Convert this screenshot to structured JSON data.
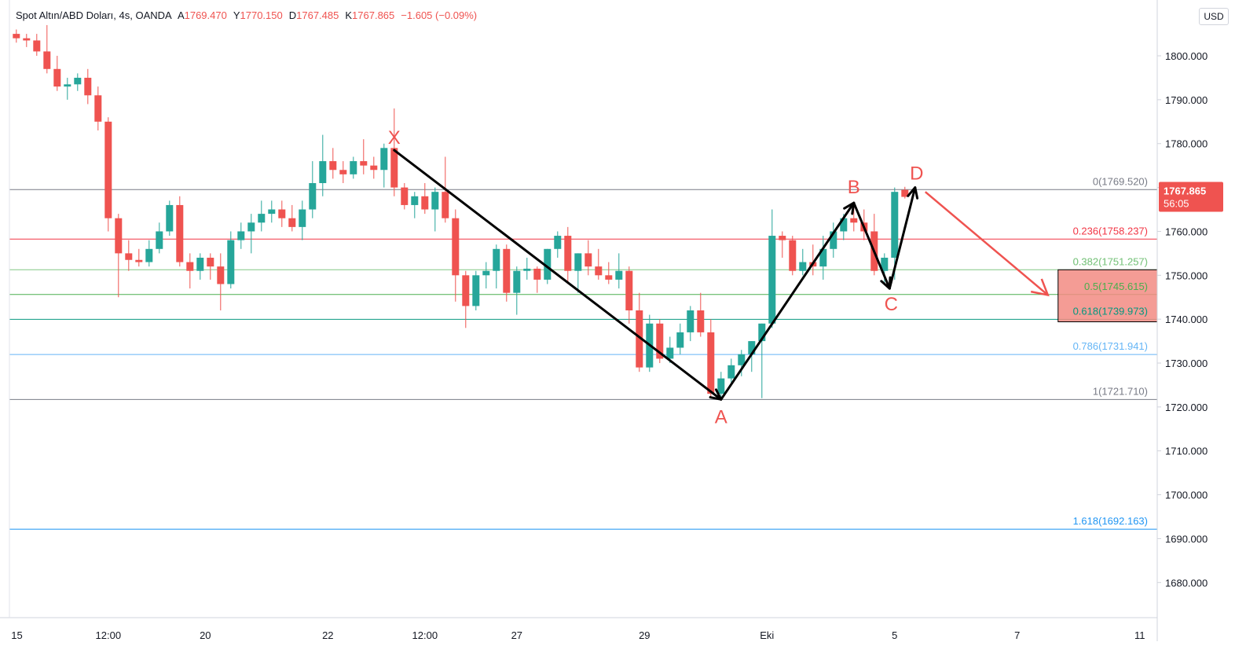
{
  "legend": {
    "symbol": "Spot Altın/ABD Doları, 4s, OANDA",
    "open_label": "A",
    "open": "1769.470",
    "high_label": "Y",
    "high": "1770.150",
    "low_label": "D",
    "low": "1767.485",
    "close_label": "K",
    "close": "1767.865",
    "change": "−1.605 (−0.09%)"
  },
  "currency_button": "USD",
  "price_tag": {
    "price": "1767.865",
    "countdown": "56:05",
    "color": "#ef5350"
  },
  "colors": {
    "up": "#26a69a",
    "down": "#ef5350",
    "pattern": "#000000",
    "projection": "#ef5350",
    "zone": "#f28b82"
  },
  "chart_data": {
    "type": "candlestick",
    "ylim": [
      1672,
      1812
    ],
    "y_ticks": [
      "1680.000",
      "1690.000",
      "1700.000",
      "1710.000",
      "1720.000",
      "1730.000",
      "1740.000",
      "1750.000",
      "1760.000",
      "1770.000",
      "1780.000",
      "1790.000",
      "1800.000"
    ],
    "y_tick_values": [
      1680,
      1690,
      1700,
      1710,
      1720,
      1730,
      1740,
      1750,
      1760,
      1770,
      1780,
      1790,
      1800
    ],
    "x_ticks": [
      {
        "label": "15",
        "i": -0.5
      },
      {
        "label": "12:00",
        "i": 9
      },
      {
        "label": "20",
        "i": 18.5
      },
      {
        "label": "22",
        "i": 30.5
      },
      {
        "label": "12:00",
        "i": 40
      },
      {
        "label": "27",
        "i": 49
      },
      {
        "label": "29",
        "i": 61.5
      },
      {
        "label": "Eki",
        "i": 73.5
      },
      {
        "label": "5",
        "i": 86
      },
      {
        "label": "7",
        "i": 98
      },
      {
        "label": "11",
        "i": 110
      }
    ],
    "candles": [
      [
        1805,
        1806,
        1803,
        1804
      ],
      [
        1804,
        1805,
        1802,
        1803.5
      ],
      [
        1803.5,
        1805,
        1800,
        1801
      ],
      [
        1801,
        1807,
        1796,
        1797
      ],
      [
        1797,
        1800,
        1792,
        1793
      ],
      [
        1793,
        1795,
        1790,
        1793.5
      ],
      [
        1793.5,
        1796,
        1792,
        1795
      ],
      [
        1795,
        1797,
        1789,
        1791
      ],
      [
        1791,
        1793,
        1783,
        1785
      ],
      [
        1785,
        1786,
        1760,
        1763
      ],
      [
        1763,
        1764,
        1745,
        1755
      ],
      [
        1755,
        1758,
        1751,
        1753.5
      ],
      [
        1753.5,
        1756,
        1752,
        1753
      ],
      [
        1753,
        1758,
        1752,
        1756
      ],
      [
        1756,
        1762,
        1755,
        1760
      ],
      [
        1760,
        1767,
        1759,
        1766
      ],
      [
        1766,
        1768,
        1752,
        1753
      ],
      [
        1753,
        1755,
        1747,
        1751
      ],
      [
        1751,
        1755,
        1749,
        1754
      ],
      [
        1754,
        1755,
        1749,
        1752
      ],
      [
        1752,
        1755,
        1742,
        1748
      ],
      [
        1748,
        1760,
        1747,
        1758
      ],
      [
        1758,
        1762,
        1756,
        1760
      ],
      [
        1760,
        1764,
        1755,
        1762
      ],
      [
        1762,
        1767,
        1760,
        1764
      ],
      [
        1764,
        1767,
        1762,
        1765
      ],
      [
        1765,
        1767,
        1761,
        1763
      ],
      [
        1763,
        1766,
        1760,
        1761
      ],
      [
        1761,
        1767,
        1758,
        1765
      ],
      [
        1765,
        1776,
        1763,
        1771
      ],
      [
        1771,
        1782,
        1768,
        1776
      ],
      [
        1776,
        1779,
        1772,
        1774
      ],
      [
        1774,
        1776,
        1771,
        1773
      ],
      [
        1773,
        1777,
        1772,
        1776
      ],
      [
        1776,
        1781,
        1773,
        1775
      ],
      [
        1775,
        1777,
        1772,
        1774
      ],
      [
        1774,
        1780,
        1770,
        1779
      ],
      [
        1779,
        1788,
        1768,
        1770
      ],
      [
        1770,
        1771,
        1765,
        1766
      ],
      [
        1766,
        1769,
        1763,
        1768
      ],
      [
        1768,
        1771,
        1764,
        1765
      ],
      [
        1765,
        1770,
        1760,
        1769
      ],
      [
        1769,
        1777,
        1762,
        1763
      ],
      [
        1763,
        1765,
        1744,
        1750
      ],
      [
        1750,
        1751,
        1738,
        1743
      ],
      [
        1743,
        1751,
        1742,
        1750
      ],
      [
        1750,
        1753,
        1747,
        1751
      ],
      [
        1751,
        1757,
        1747,
        1756
      ],
      [
        1756,
        1757,
        1744,
        1746
      ],
      [
        1746,
        1752,
        1741,
        1751
      ],
      [
        1751,
        1754,
        1749,
        1751.5
      ],
      [
        1751.5,
        1752,
        1746,
        1749
      ],
      [
        1749,
        1756,
        1748,
        1756
      ],
      [
        1756,
        1760,
        1754,
        1759
      ],
      [
        1759,
        1761,
        1748,
        1751
      ],
      [
        1751,
        1755,
        1746,
        1755
      ],
      [
        1755,
        1758,
        1750,
        1752
      ],
      [
        1752,
        1756,
        1749,
        1750
      ],
      [
        1750,
        1753,
        1748,
        1749
      ],
      [
        1749,
        1755,
        1747,
        1751
      ],
      [
        1751,
        1752,
        1739,
        1742
      ],
      [
        1742,
        1746,
        1728,
        1729
      ],
      [
        1729,
        1741,
        1728,
        1739
      ],
      [
        1739,
        1740,
        1730,
        1731
      ],
      [
        1731,
        1736,
        1730,
        1733.5
      ],
      [
        1733.5,
        1739,
        1732,
        1737
      ],
      [
        1737,
        1743,
        1735,
        1742
      ],
      [
        1742,
        1746,
        1736,
        1737
      ],
      [
        1737,
        1740,
        1722,
        1723
      ],
      [
        1723,
        1728,
        1721.71,
        1726.5
      ],
      [
        1726.5,
        1731,
        1725,
        1729.5
      ],
      [
        1729.5,
        1733,
        1727,
        1732
      ],
      [
        1732,
        1735,
        1728,
        1735
      ],
      [
        1735,
        1739,
        1722,
        1739
      ],
      [
        1739,
        1765,
        1738,
        1759
      ],
      [
        1759,
        1760,
        1754,
        1758
      ],
      [
        1758,
        1759,
        1750,
        1751
      ],
      [
        1751,
        1756,
        1750,
        1753
      ],
      [
        1753,
        1757,
        1750,
        1752
      ],
      [
        1752,
        1759,
        1749,
        1756
      ],
      [
        1756,
        1762,
        1754,
        1760
      ],
      [
        1760,
        1764,
        1758,
        1763
      ],
      [
        1763,
        1766,
        1760,
        1762
      ],
      [
        1762,
        1765,
        1758,
        1760
      ],
      [
        1760,
        1764,
        1750,
        1751
      ],
      [
        1751,
        1755,
        1748,
        1754
      ],
      [
        1754,
        1770,
        1749,
        1769
      ],
      [
        1769.47,
        1770.15,
        1767.485,
        1767.865
      ]
    ],
    "fibonacci": [
      {
        "ratio": "0",
        "label": "0(1769.520)",
        "value": 1769.52,
        "color": "#787b86"
      },
      {
        "ratio": "0.236",
        "label": "0.236(1758.237)",
        "value": 1758.237,
        "color": "#f23645"
      },
      {
        "ratio": "0.382",
        "label": "0.382(1751.257)",
        "value": 1751.257,
        "color": "#81c784"
      },
      {
        "ratio": "0.5",
        "label": "0.5(1745.615)",
        "value": 1745.615,
        "color": "#4caf50"
      },
      {
        "ratio": "0.618",
        "label": "0.618(1739.973)",
        "value": 1739.973,
        "color": "#089981"
      },
      {
        "ratio": "0.786",
        "label": "0.786(1731.941)",
        "value": 1731.941,
        "color": "#64b5f6"
      },
      {
        "ratio": "1",
        "label": "1(1721.710)",
        "value": 1721.71,
        "color": "#787b86"
      },
      {
        "ratio": "1.618",
        "label": "1.618(1692.163)",
        "value": 1692.163,
        "color": "#2196f3"
      }
    ],
    "pattern_points": [
      {
        "label": "X",
        "i": 37.0,
        "price": 1778.5
      },
      {
        "label": "A",
        "i": 69.0,
        "price": 1721.71
      },
      {
        "label": "B",
        "i": 82.0,
        "price": 1766.5
      },
      {
        "label": "C",
        "i": 85.5,
        "price": 1747.0
      },
      {
        "label": "D",
        "i": 88.0,
        "price": 1770.0
      }
    ],
    "projection": {
      "from_i": 89.0,
      "from_price": 1769.0,
      "to_i": 101.0,
      "to_price": 1745.5
    },
    "target_zone": {
      "from_i": 102.0,
      "price_high": 1751.257,
      "price_low": 1739.4
    }
  }
}
